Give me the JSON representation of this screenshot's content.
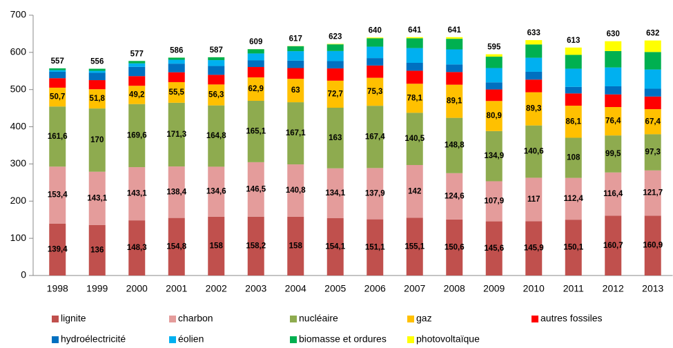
{
  "chart_data": {
    "type": "stacked-bar",
    "categories": [
      "1998",
      "1999",
      "2000",
      "2001",
      "2002",
      "2003",
      "2004",
      "2005",
      "2006",
      "2007",
      "2008",
      "2009",
      "2010",
      "2011",
      "2012",
      "2013"
    ],
    "ylim": [
      0,
      700
    ],
    "yticks": [
      0,
      100,
      200,
      300,
      400,
      500,
      600,
      700
    ],
    "grid": false,
    "totals": [
      557,
      556,
      577,
      586,
      587,
      609,
      617,
      623,
      640,
      641,
      641,
      595,
      633,
      613,
      630,
      632
    ],
    "series": [
      {
        "name": "lignite",
        "color": "#c0504d",
        "values": [
          139.4,
          136,
          148.3,
          154.8,
          158,
          158.2,
          158,
          154.1,
          151.1,
          155.1,
          150.6,
          145.6,
          145.9,
          150.1,
          160.7,
          160.9
        ],
        "value_labels": [
          "139,4",
          "136",
          "148,3",
          "154,8",
          "158",
          "158,2",
          "158",
          "154,1",
          "151,1",
          "155,1",
          "150,6",
          "145,6",
          "145,9",
          "150,1",
          "160,7",
          "160,9"
        ]
      },
      {
        "name": "charbon",
        "color": "#e49c9b",
        "values": [
          153.4,
          143.1,
          143.1,
          138.4,
          134.6,
          146.5,
          140.8,
          134.1,
          137.9,
          142,
          124.6,
          107.9,
          117,
          112.4,
          116.4,
          121.7
        ],
        "value_labels": [
          "153,4",
          "143,1",
          "143,1",
          "138,4",
          "134,6",
          "146,5",
          "140,8",
          "134,1",
          "137,9",
          "142",
          "124,6",
          "107,9",
          "117",
          "112,4",
          "116,4",
          "121,7"
        ]
      },
      {
        "name": "nucléaire",
        "color": "#8eab4f",
        "values": [
          161.6,
          170,
          169.6,
          171.3,
          164.8,
          165.1,
          167.1,
          163,
          167.4,
          140.5,
          148.8,
          134.9,
          140.6,
          108,
          99.5,
          97.3
        ],
        "value_labels": [
          "161,6",
          "170",
          "169,6",
          "171,3",
          "164,8",
          "165,1",
          "167,1",
          "163",
          "167,4",
          "140,5",
          "148,8",
          "134,9",
          "140,6",
          "108",
          "99,5",
          "97,3"
        ]
      },
      {
        "name": "gaz",
        "color": "#ffc000",
        "values": [
          50.7,
          51.8,
          49.2,
          55.5,
          56.3,
          62.9,
          63,
          72.7,
          75.3,
          78.1,
          89.1,
          80.9,
          89.3,
          86.1,
          76.4,
          67.4
        ],
        "value_labels": [
          "50,7",
          "51,8",
          "49,2",
          "55,5",
          "56,3",
          "62,9",
          "63",
          "72,7",
          "75,3",
          "78,1",
          "89,1",
          "80,9",
          "89,3",
          "86,1",
          "76,4",
          "67,4"
        ]
      },
      {
        "name": "autres fossiles",
        "color": "#ff0000",
        "values": [
          25.5,
          24.5,
          26,
          26.5,
          26,
          28,
          29,
          33,
          33,
          35,
          34,
          31,
          34,
          33,
          34,
          34
        ]
      },
      {
        "name": "hydroélectricité",
        "color": "#0070c0",
        "values": [
          17.2,
          19.6,
          24.9,
          23.2,
          23.7,
          17.7,
          19.9,
          19.6,
          20,
          21.2,
          20.4,
          19,
          21,
          17.7,
          21.8,
          21
        ]
      },
      {
        "name": "éolien",
        "color": "#00b0f0",
        "values": [
          4.5,
          5.5,
          9.5,
          10.5,
          15.8,
          18.7,
          25.5,
          27.2,
          30.7,
          39.7,
          40.6,
          38.6,
          37.8,
          48.9,
          50.7,
          51.7
        ]
      },
      {
        "name": "biomasse et ordures",
        "color": "#00b050",
        "values": [
          4.7,
          5.5,
          6.3,
          5.6,
          7.6,
          11.6,
          13.1,
          18,
          22.4,
          26.3,
          28.5,
          30.6,
          35.7,
          37.2,
          44.1,
          47
        ]
      },
      {
        "name": "photovoltaïque",
        "color": "#ffff00",
        "values": [
          0,
          0,
          0.1,
          0.2,
          0.2,
          0.3,
          0.6,
          1.3,
          2.2,
          3.1,
          4.4,
          6.5,
          11.7,
          19.6,
          26.4,
          31
        ]
      }
    ]
  }
}
